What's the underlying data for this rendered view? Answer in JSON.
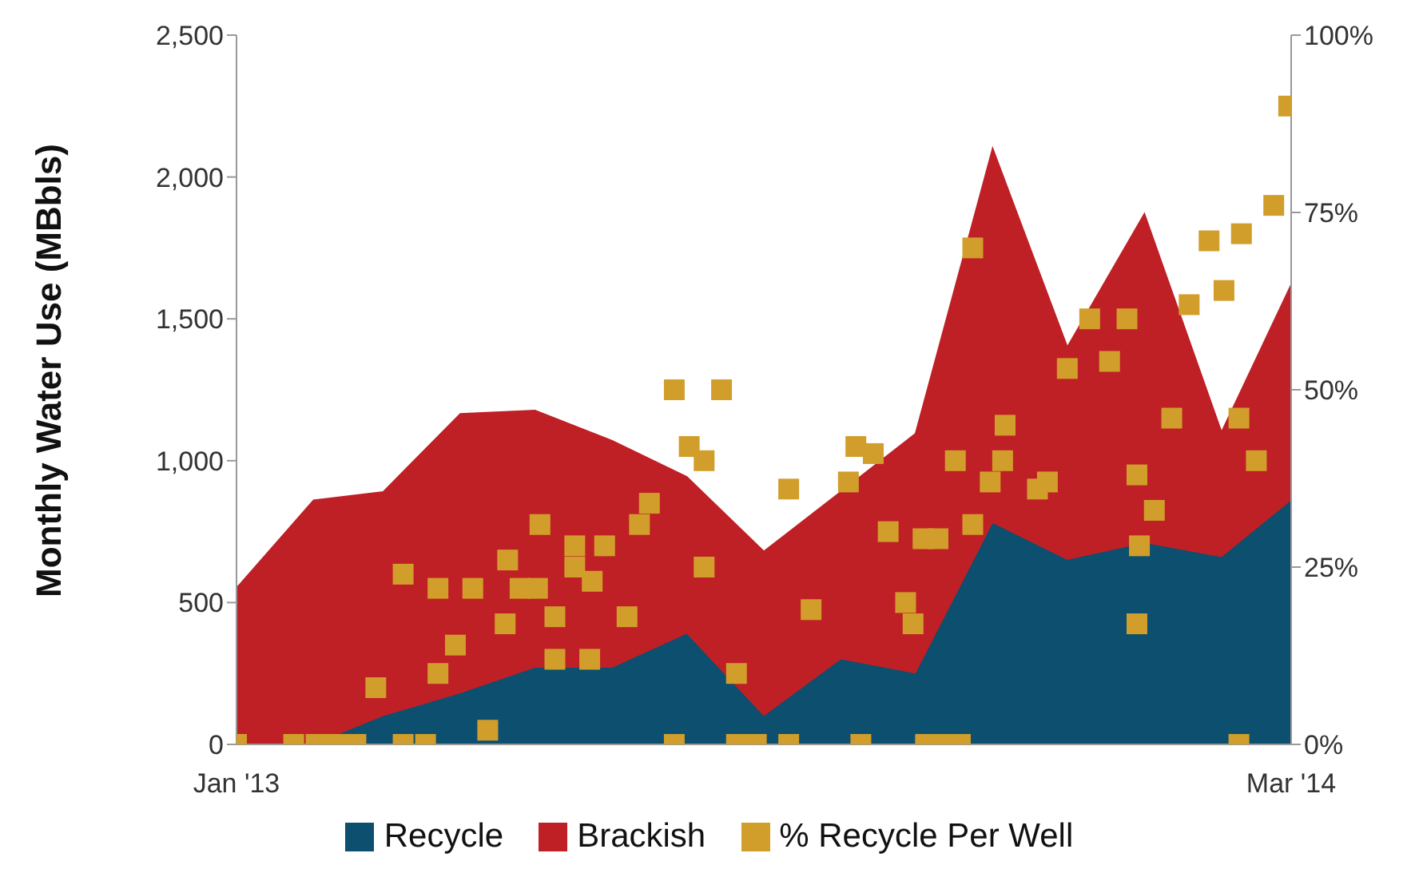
{
  "chart_data": {
    "type": "area",
    "ylabel": "Monthly Water Use (MBbls)",
    "stacked": true,
    "legend": "bottom",
    "x": [
      "2013-01-01",
      "2013-02-01",
      "2013-03-01",
      "2013-04-01",
      "2013-05-01",
      "2013-06-01",
      "2013-07-01",
      "2013-08-01",
      "2013-09-01",
      "2013-10-01",
      "2013-11-01",
      "2013-12-01",
      "2014-01-01",
      "2014-02-01",
      "2014-03-01"
    ],
    "xlim": [
      "2013-01-01",
      "2014-03-01"
    ],
    "xticks": [
      {
        "value": "2013-01-01",
        "label": "Jan '13"
      },
      {
        "value": "2014-03-01",
        "label": "Mar '14"
      }
    ],
    "ylim": [
      0,
      2500
    ],
    "yticks": [
      {
        "value": 0,
        "label": "0"
      },
      {
        "value": 500,
        "label": "500"
      },
      {
        "value": 1000,
        "label": "1,000"
      },
      {
        "value": 1500,
        "label": "1,500"
      },
      {
        "value": 2000,
        "label": "2,000"
      },
      {
        "value": 2500,
        "label": "2,500"
      }
    ],
    "y2lim": [
      0,
      100
    ],
    "y2ticks": [
      {
        "value": 0,
        "label": "0%"
      },
      {
        "value": 25,
        "label": "25%"
      },
      {
        "value": 50,
        "label": "50%"
      },
      {
        "value": 75,
        "label": "75%"
      },
      {
        "value": 100,
        "label": "100%"
      }
    ],
    "series": [
      {
        "name": "Recycle",
        "color": "#0d4f6e",
        "values": [
          0,
          0,
          100,
          180,
          270,
          270,
          390,
          100,
          300,
          250,
          780,
          650,
          710,
          660,
          860
        ]
      },
      {
        "name": "Brackish",
        "color": "#bf2026",
        "values": [
          550,
          860,
          790,
          985,
          907,
          800,
          553,
          580,
          590,
          845,
          1320,
          750,
          1160,
          440,
          760
        ]
      },
      {
        "name": "% Recycle Per Well",
        "type": "scatter",
        "axis": "y2",
        "marker": "square",
        "color": "#d19e2b",
        "x": [
          "2013-01-01",
          "2013-01-24",
          "2013-02-02",
          "2013-02-10",
          "2013-02-18",
          "2013-02-26",
          "2013-03-09",
          "2013-03-09",
          "2013-03-18",
          "2013-03-23",
          "2013-03-23",
          "2013-03-30",
          "2013-04-06",
          "2013-04-12",
          "2013-04-19",
          "2013-04-20",
          "2013-04-25",
          "2013-05-02",
          "2013-05-03",
          "2013-05-09",
          "2013-05-09",
          "2013-05-17",
          "2013-05-17",
          "2013-05-23",
          "2013-05-24",
          "2013-05-29",
          "2013-06-07",
          "2013-06-12",
          "2013-06-16",
          "2013-06-26",
          "2013-07-02",
          "2013-07-08",
          "2013-07-08",
          "2013-07-15",
          "2013-07-21",
          "2013-07-21",
          "2013-07-29",
          "2013-08-11",
          "2013-08-11",
          "2013-08-20",
          "2013-09-04",
          "2013-09-07",
          "2013-09-09",
          "2013-09-14",
          "2013-09-20",
          "2013-09-27",
          "2013-09-30",
          "2013-10-04",
          "2013-10-05",
          "2013-10-10",
          "2013-10-13",
          "2013-10-17",
          "2013-10-19",
          "2013-10-24",
          "2013-10-24",
          "2013-10-31",
          "2013-11-05",
          "2013-11-06",
          "2013-11-19",
          "2013-11-23",
          "2013-12-01",
          "2013-12-10",
          "2013-12-18",
          "2013-12-25",
          "2013-12-29",
          "2013-12-29",
          "2013-12-30",
          "2014-01-05",
          "2014-01-12",
          "2014-01-19",
          "2014-01-27",
          "2014-02-02",
          "2014-02-08",
          "2014-02-08",
          "2014-02-09",
          "2014-02-15",
          "2014-02-22",
          "2014-02-28",
          "2013-06-26"
        ],
        "values": [
          0,
          0,
          0,
          0,
          0,
          8,
          24,
          0,
          0,
          10,
          22,
          14,
          22,
          2,
          17,
          26,
          22,
          22,
          31,
          18,
          12,
          28,
          25,
          12,
          23,
          28,
          18,
          31,
          34,
          50,
          42,
          40,
          25,
          50,
          10,
          0,
          0,
          36,
          0,
          19,
          37,
          42,
          0,
          41,
          30,
          20,
          17,
          29,
          0,
          29,
          0,
          40,
          0,
          31,
          70,
          37,
          40,
          45,
          36,
          37,
          53,
          60,
          54,
          60,
          38,
          17,
          28,
          33,
          46,
          62,
          71,
          64,
          46,
          0,
          72,
          40,
          76,
          90,
          0
        ]
      }
    ]
  }
}
